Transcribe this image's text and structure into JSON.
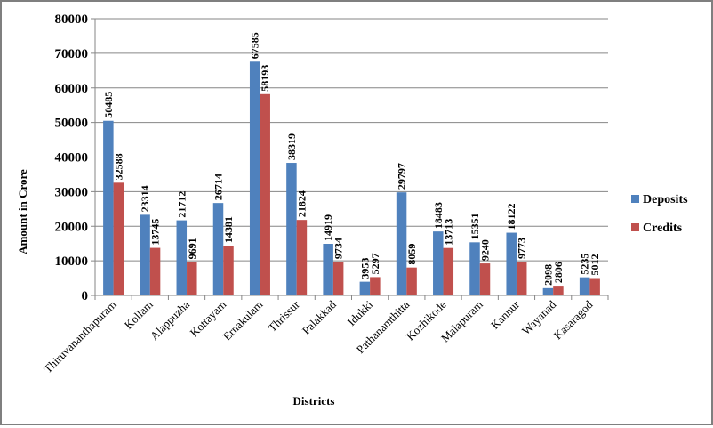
{
  "chart_data": {
    "type": "bar",
    "title": "",
    "xlabel": "Districts",
    "ylabel": "Amount in Crore",
    "ylim": [
      0,
      80000
    ],
    "yticks": [
      0,
      10000,
      20000,
      30000,
      40000,
      50000,
      60000,
      70000,
      80000
    ],
    "grid": true,
    "legend_position": "right",
    "categories": [
      "Thiruvananthapuram",
      "Kollam",
      "Alappuzha",
      "Kottayam",
      "Ernakulam",
      "Thrissur",
      "Palakkad",
      "Idukki",
      "Pathanamthitta",
      "Kozhikode",
      "Malapuram",
      "Kannur",
      "Wayanad",
      "Kasaragod"
    ],
    "series": [
      {
        "name": "Deposits",
        "color": "#4f81bd",
        "values": [
          50485,
          23314,
          21712,
          26714,
          67585,
          38319,
          14919,
          3953,
          29797,
          18483,
          15351,
          18122,
          2098,
          5235
        ]
      },
      {
        "name": "Credits",
        "color": "#c0504d",
        "values": [
          32588,
          13745,
          9691,
          14381,
          58193,
          21824,
          9734,
          5297,
          8059,
          13713,
          9240,
          9773,
          2806,
          5012
        ]
      }
    ]
  }
}
